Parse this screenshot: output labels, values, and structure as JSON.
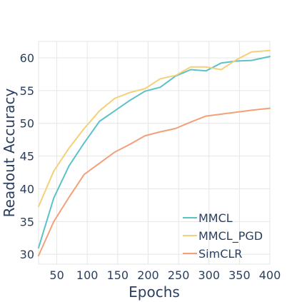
{
  "chart_data": {
    "type": "line",
    "xlabel": "Epochs",
    "ylabel": "Readout Accuracy",
    "xlim": [
      20,
      400
    ],
    "ylim": [
      28.5,
      62.5
    ],
    "xticks": [
      50,
      100,
      150,
      200,
      250,
      300,
      350,
      400
    ],
    "yticks": [
      30,
      35,
      40,
      45,
      50,
      55,
      60
    ],
    "grid": true,
    "legend_position": "bottom-right",
    "series": [
      {
        "name": "MMCL",
        "color": "#5bc2c8",
        "x": [
          20,
          45,
          70,
          95,
          120,
          145,
          170,
          195,
          220,
          245,
          270,
          295,
          320,
          345,
          370,
          400
        ],
        "y": [
          31.0,
          38.6,
          43.5,
          47.0,
          50.3,
          51.9,
          53.5,
          54.9,
          55.5,
          57.2,
          58.2,
          58.0,
          59.2,
          59.5,
          59.6,
          60.2
        ]
      },
      {
        "name": "MMCL_PGD",
        "color": "#f5d07a",
        "x": [
          20,
          45,
          70,
          95,
          120,
          145,
          170,
          195,
          220,
          245,
          270,
          295,
          320,
          345,
          370,
          400
        ],
        "y": [
          37.3,
          42.7,
          46.2,
          49.2,
          51.9,
          53.8,
          54.7,
          55.3,
          56.8,
          57.3,
          58.6,
          58.6,
          58.2,
          59.7,
          60.9,
          61.1
        ]
      },
      {
        "name": "SimCLR",
        "color": "#f2a07a",
        "x": [
          20,
          45,
          70,
          95,
          120,
          145,
          170,
          195,
          220,
          245,
          270,
          295,
          320,
          345,
          370,
          400
        ],
        "y": [
          29.8,
          35.0,
          38.7,
          42.2,
          43.9,
          45.6,
          46.8,
          48.1,
          48.7,
          49.2,
          50.2,
          51.1,
          51.4,
          51.7,
          52.0,
          52.3
        ]
      }
    ]
  }
}
